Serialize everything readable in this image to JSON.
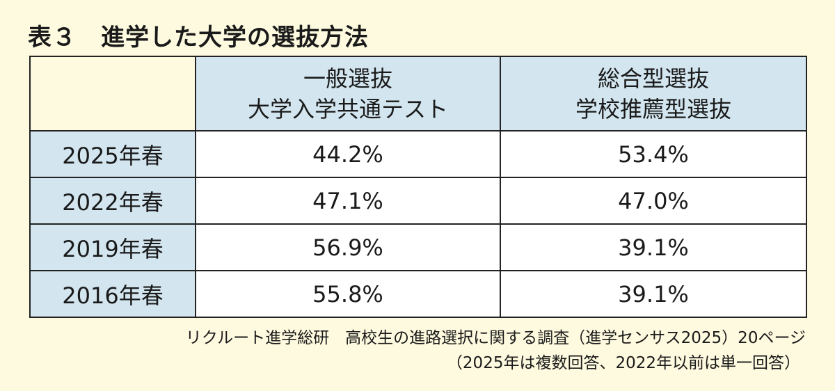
{
  "title": "表３　進学した大学の選抜方法",
  "chart_data": {
    "type": "table",
    "title": "表３　進学した大学の選抜方法",
    "columns": [
      {
        "line1": "一般選抜",
        "line2": "大学入学共通テスト"
      },
      {
        "line1": "総合型選抜",
        "line2": "学校推薦型選抜"
      }
    ],
    "rows": [
      {
        "label": "2025年春",
        "values": [
          "44.2%",
          "53.4%"
        ]
      },
      {
        "label": "2022年春",
        "values": [
          "47.1%",
          "47.0%"
        ]
      },
      {
        "label": "2019年春",
        "values": [
          "56.9%",
          "39.1%"
        ]
      },
      {
        "label": "2016年春",
        "values": [
          "55.8%",
          "39.1%"
        ]
      }
    ]
  },
  "footnote": {
    "line1": "リクルート進学総研　高校生の進路選択に関する調査（進学センサス2025）20ページ",
    "line2": "（2025年は複数回答、2022年以前は単一回答）"
  },
  "colors": {
    "background": "#fefadf",
    "header": "#d3e6f0",
    "border": "#222222"
  }
}
